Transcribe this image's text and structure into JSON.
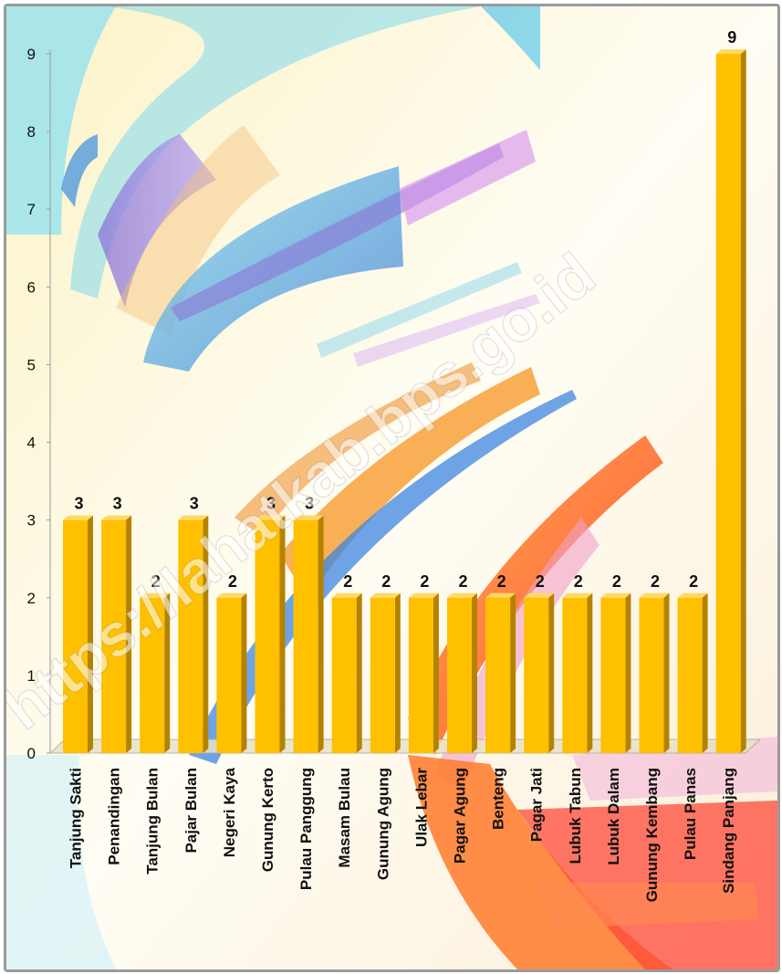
{
  "chart_data": {
    "type": "bar",
    "categories": [
      "Tanjung Sakti",
      "Penandingan",
      "Tanjung Bulan",
      "Pajar Bulan",
      "Negeri Kaya",
      "Gunung Kerto",
      "Pulau  Panggung",
      "Masam Bulau",
      "Gunung Agung",
      "Ulak Lebar",
      "Pagar Agung",
      "Benteng",
      "Pagar Jati",
      "Lubuk Tabun",
      "Lubuk Dalam",
      "Gunung  Kembang",
      "Pulau Panas",
      "Sindang Panjang"
    ],
    "values": [
      3,
      3,
      2,
      3,
      2,
      3,
      3,
      2,
      2,
      2,
      2,
      2,
      2,
      2,
      2,
      2,
      2,
      9
    ],
    "ylim": [
      0,
      9
    ],
    "yticks": [
      "0",
      "1",
      "2",
      "3",
      "4",
      "5",
      "6",
      "7",
      "8",
      "9"
    ],
    "grid": false,
    "legend": "none",
    "bar_color": "#ffc000",
    "bar_side_color": "#b58200",
    "bar_top_color": "#ffd966"
  },
  "watermark": "https://lahatkab.bps.go.id"
}
